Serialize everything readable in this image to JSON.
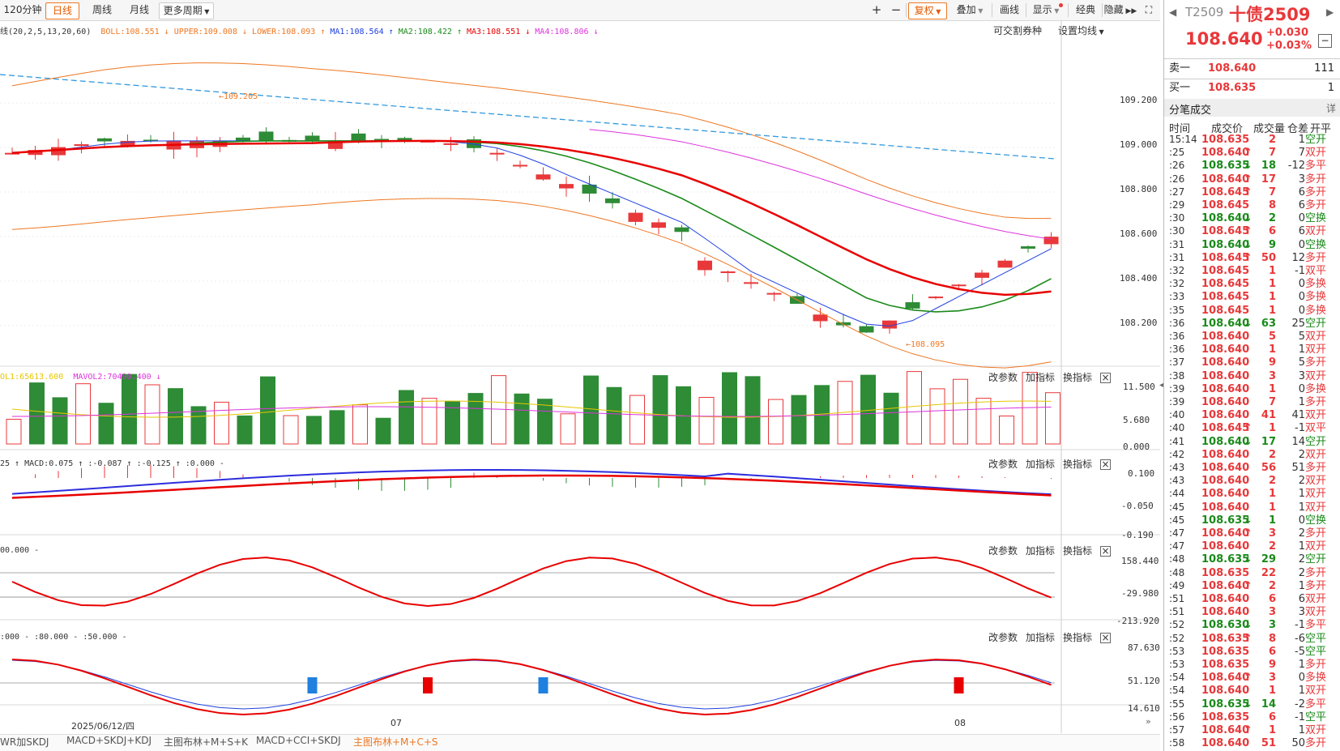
{
  "toolbar": {
    "tabs": [
      "120分钟",
      "日线",
      "周线",
      "月线",
      "更多周期"
    ],
    "active_tab": "日线",
    "zoom_in": "+",
    "zoom_out": "−",
    "fuquan": "复权",
    "diejia": "叠加",
    "huaxian": "画线",
    "xianshi": "显示",
    "jingdian": "经典",
    "yincang": "隐藏",
    "fullscreen": "⛶"
  },
  "main_legend": {
    "name": "线(20,2,5,13,20,60)",
    "boll": "BOLL:108.551",
    "upper": "UPPER:109.008",
    "lower": "LOWER:108.093",
    "ma1": "MA1:108.564",
    "ma2": "MA2:108.422",
    "ma3": "MA3:108.551",
    "ma4": "MA4:108.806",
    "kejiaoge": "可交割券种",
    "shezhi": "设置均线"
  },
  "colors": {
    "up": "#e8383a",
    "down": "#2e8b36",
    "boll": "#ee7722",
    "ma1": "#2040e0",
    "ma2": "#1a8a1a",
    "ma3": "#e80000",
    "ma4": "#dd33dd",
    "accent": "#ee7722"
  },
  "price_axis": [
    "109.200",
    "109.000",
    "108.800",
    "108.600",
    "108.400",
    "108.200"
  ],
  "annotations": {
    "high": "←109.205",
    "low": "←108.095"
  },
  "vol_panel": {
    "legend1": "OL1:65613.600",
    "legend2": "MAVOL2:70490.400",
    "axis": [
      "11.500",
      "5.680",
      "0.000"
    ],
    "tools": [
      "改参数",
      "加指标",
      "换指标"
    ]
  },
  "macd_panel": {
    "legend": "25 ↑ MACD:0.075 ↑ :-0.087 ↑ :-0.125 ↑ :0.000 -",
    "axis": [
      "0.100",
      "-0.050",
      "-0.190"
    ],
    "tools": [
      "改参数",
      "加指标",
      "换指标"
    ]
  },
  "cci_panel": {
    "legend": "00.000 -",
    "axis": [
      "158.440",
      "-29.980",
      "-213.920"
    ],
    "tools": [
      "改参数",
      "加指标",
      "换指标"
    ]
  },
  "kdj_panel": {
    "legend": ":000 - :80.000 - :50.000 -",
    "axis": [
      "87.630",
      "51.120",
      "14.610"
    ],
    "tools": [
      "改参数",
      "加指标",
      "换指标"
    ]
  },
  "date_axis": {
    "d1": "2025/06/12/四",
    "d2": "07",
    "d3": "08"
  },
  "bottom_tabs": [
    "WR加SKDJ",
    "MACD+SKDJ+KDJ",
    "主图布林+M+S+K",
    "MACD+CCI+SKDJ",
    "主图布林+M+C+S"
  ],
  "active_bottom_tab": "主图布林+M+C+S",
  "quote": {
    "code": "T2509",
    "name": "十债2509",
    "price": "108.640",
    "change": "+0.030",
    "change_pct": "+0.03%",
    "sell_label": "卖一",
    "sell_price": "108.640",
    "sell_vol": "111",
    "buy_label": "买一",
    "buy_price": "108.635",
    "buy_vol": "1",
    "ticks_title": "分笔成交",
    "detail": "详",
    "headers": [
      "时间",
      "成交价",
      "成交量",
      "仓差",
      "开平"
    ]
  },
  "ticks": [
    [
      "15:14",
      "108.635",
      "",
      "2",
      "1",
      "空开"
    ],
    [
      ":25",
      "108.640",
      "↑",
      "7",
      "7",
      "双开"
    ],
    [
      ":26",
      "108.635",
      "↓",
      "18",
      "-12",
      "多平"
    ],
    [
      ":26",
      "108.640",
      "↑",
      "17",
      "3",
      "多开"
    ],
    [
      ":27",
      "108.645",
      "↑",
      "7",
      "6",
      "多开"
    ],
    [
      ":29",
      "108.645",
      "",
      "8",
      "6",
      "多开"
    ],
    [
      ":30",
      "108.640",
      "↓",
      "2",
      "0",
      "空换"
    ],
    [
      ":30",
      "108.645",
      "↑",
      "6",
      "6",
      "双开"
    ],
    [
      ":31",
      "108.640",
      "↓",
      "9",
      "0",
      "空换"
    ],
    [
      ":31",
      "108.645",
      "↑",
      "50",
      "12",
      "多开"
    ],
    [
      ":32",
      "108.645",
      "",
      "1",
      "-1",
      "双平"
    ],
    [
      ":32",
      "108.645",
      "",
      "1",
      "0",
      "多换"
    ],
    [
      ":33",
      "108.645",
      "",
      "1",
      "0",
      "多换"
    ],
    [
      ":35",
      "108.645",
      "",
      "1",
      "0",
      "多换"
    ],
    [
      ":36",
      "108.640",
      "↓",
      "63",
      "25",
      "空开"
    ],
    [
      ":36",
      "108.640",
      "",
      "5",
      "5",
      "双开"
    ],
    [
      ":36",
      "108.640",
      "",
      "1",
      "1",
      "双开"
    ],
    [
      ":37",
      "108.640",
      "",
      "9",
      "5",
      "多开"
    ],
    [
      ":38",
      "108.640",
      "",
      "3",
      "3",
      "双开"
    ],
    [
      ":39",
      "108.640",
      "",
      "1",
      "0",
      "多换"
    ],
    [
      ":39",
      "108.640",
      "",
      "7",
      "1",
      "多开"
    ],
    [
      ":40",
      "108.640",
      "",
      "41",
      "41",
      "双开"
    ],
    [
      ":40",
      "108.645",
      "↑",
      "1",
      "-1",
      "双平"
    ],
    [
      ":41",
      "108.640",
      "↓",
      "17",
      "14",
      "空开"
    ],
    [
      ":42",
      "108.640",
      "",
      "2",
      "2",
      "双开"
    ],
    [
      ":43",
      "108.640",
      "",
      "56",
      "51",
      "多开"
    ],
    [
      ":43",
      "108.640",
      "",
      "2",
      "2",
      "双开"
    ],
    [
      ":44",
      "108.640",
      "",
      "1",
      "1",
      "双开"
    ],
    [
      ":45",
      "108.640",
      "",
      "1",
      "1",
      "双开"
    ],
    [
      ":45",
      "108.635",
      "↓",
      "1",
      "0",
      "空换"
    ],
    [
      ":47",
      "108.640",
      "↑",
      "3",
      "2",
      "多开"
    ],
    [
      ":47",
      "108.640",
      "",
      "2",
      "1",
      "双开"
    ],
    [
      ":48",
      "108.635",
      "↓",
      "29",
      "2",
      "空开"
    ],
    [
      ":48",
      "108.635",
      "",
      "22",
      "2",
      "多开"
    ],
    [
      ":49",
      "108.640",
      "↑",
      "2",
      "1",
      "多开"
    ],
    [
      ":51",
      "108.640",
      "",
      "6",
      "6",
      "双开"
    ],
    [
      ":51",
      "108.640",
      "",
      "3",
      "3",
      "双开"
    ],
    [
      ":52",
      "108.630",
      "↓",
      "3",
      "-1",
      "多平"
    ],
    [
      ":52",
      "108.635",
      "↑",
      "8",
      "-6",
      "空平"
    ],
    [
      ":53",
      "108.635",
      "",
      "6",
      "-5",
      "空平"
    ],
    [
      ":53",
      "108.635",
      "",
      "9",
      "1",
      "多开"
    ],
    [
      ":54",
      "108.640",
      "↑",
      "3",
      "0",
      "多换"
    ],
    [
      ":54",
      "108.640",
      "",
      "1",
      "1",
      "双开"
    ],
    [
      ":55",
      "108.635",
      "↓",
      "14",
      "-2",
      "多平"
    ],
    [
      ":56",
      "108.635",
      "",
      "6",
      "-1",
      "空平"
    ],
    [
      ":57",
      "108.640",
      "↑",
      "1",
      "1",
      "双开"
    ],
    [
      ":58",
      "108.640",
      "",
      "51",
      "50",
      "多开"
    ]
  ]
}
